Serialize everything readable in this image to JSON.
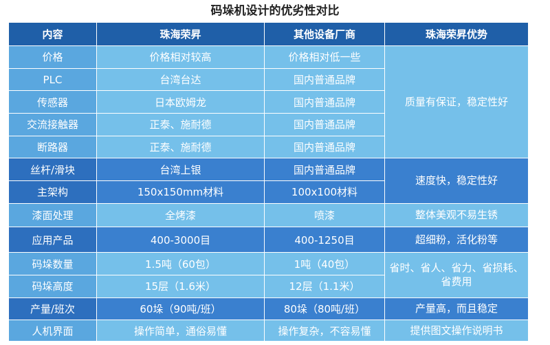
{
  "title": "码垛机设计的优劣性对比",
  "headers": [
    "内容",
    "珠海荣昇",
    "其他设备厂商",
    "珠海荣昇优势"
  ],
  "rows": [
    {
      "item": "价格",
      "zhuhai": "价格相对较高",
      "others": "价格相对低一些"
    },
    {
      "item": "PLC",
      "zhuhai": "台湾台达",
      "others": "国内普通品牌"
    },
    {
      "item": "传感器",
      "zhuhai": "日本欧姆龙",
      "others": "国内普通品牌"
    },
    {
      "item": "交流接触器",
      "zhuhai": "正泰、施耐德",
      "others": "国内普通品牌"
    },
    {
      "item": "断路器",
      "zhuhai": "正泰、施耐德",
      "others": "国内普通品牌"
    },
    {
      "item": "丝杆/滑块",
      "zhuhai": "台湾上银",
      "others": "国内普通品牌"
    },
    {
      "item": "主架构",
      "zhuhai": "150x150mm材料",
      "others": "100x100材料"
    },
    {
      "item": "漆面处理",
      "zhuhai": "全烤漆",
      "others": "喷漆"
    },
    {
      "item": "应用产品",
      "zhuhai": "400-3000目",
      "others": "400-1250目"
    },
    {
      "item": "码垛数量",
      "zhuhai": "1.5吨（60包）",
      "others": "1吨（40包）"
    },
    {
      "item": "码垛高度",
      "zhuhai": "15层（1.6米）",
      "others": "12层（1.1米）"
    },
    {
      "item": "产量/班次",
      "zhuhai": "60垛（90吨/班）",
      "others": "80垛（80吨/班）"
    },
    {
      "item": "人机界面",
      "zhuhai": "操作简单，通俗易懂",
      "others": "操作复杂，不容易懂"
    }
  ],
  "advantages": {
    "quality": "质量有保证，稳定性好",
    "speed": "速度快，稳定性好",
    "appearance": "整体美观不易生锈",
    "powder": "超细粉，活化粉等",
    "saving": "省时、省人、省力、省损耗、省费用",
    "output": "产量高，而且稳定",
    "manual": "提供图文操作说明书"
  }
}
